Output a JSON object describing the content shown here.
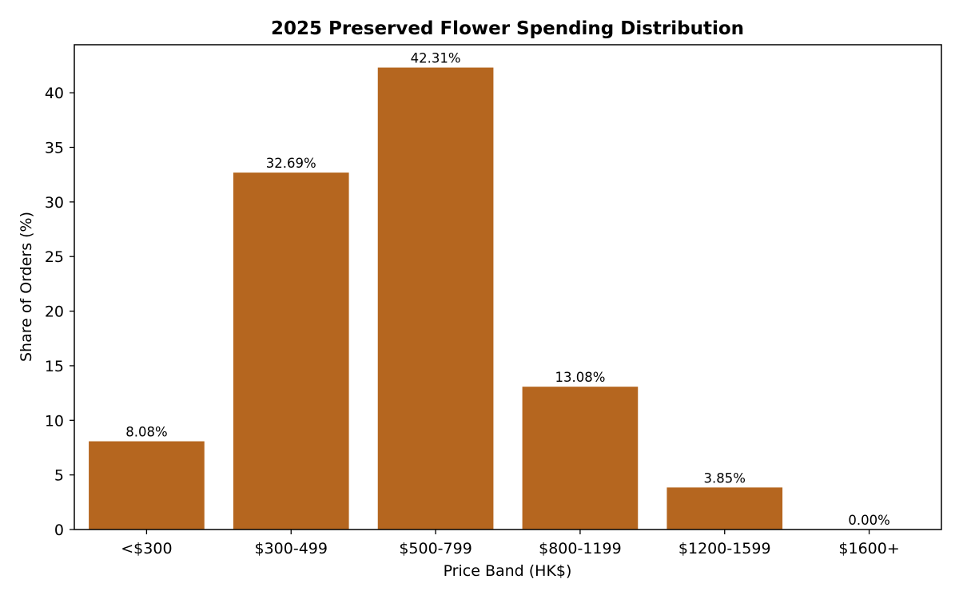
{
  "chart_data": {
    "type": "bar",
    "title": "2025 Preserved Flower Spending Distribution",
    "xlabel": "Price Band (HK$)",
    "ylabel": "Share of Orders (%)",
    "categories": [
      "<$300",
      "$300-499",
      "$500-799",
      "$800-1199",
      "$1200-1599",
      "$1600+"
    ],
    "values": [
      8.08,
      32.69,
      42.31,
      13.08,
      3.85,
      0.0
    ],
    "data_labels": [
      "8.08%",
      "32.69%",
      "42.31%",
      "13.08%",
      "3.85%",
      "0.00%"
    ],
    "yticks": [
      0,
      5,
      10,
      15,
      20,
      25,
      30,
      35,
      40
    ],
    "ylim": [
      0,
      44.4
    ],
    "grid": false,
    "bar_color": "#b5661f"
  }
}
